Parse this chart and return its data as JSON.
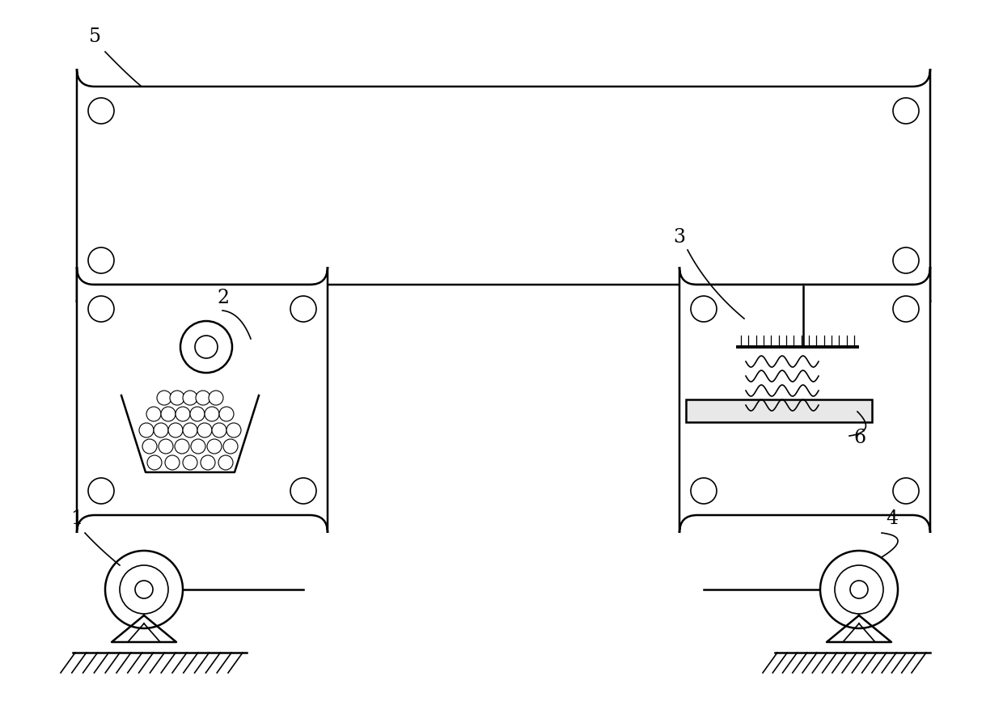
{
  "bg_color": "#ffffff",
  "line_color": "#000000",
  "line_width": 1.8,
  "fig_width": 12.4,
  "fig_height": 8.79,
  "corner_r": 0.018,
  "lw_thin": 1.2
}
